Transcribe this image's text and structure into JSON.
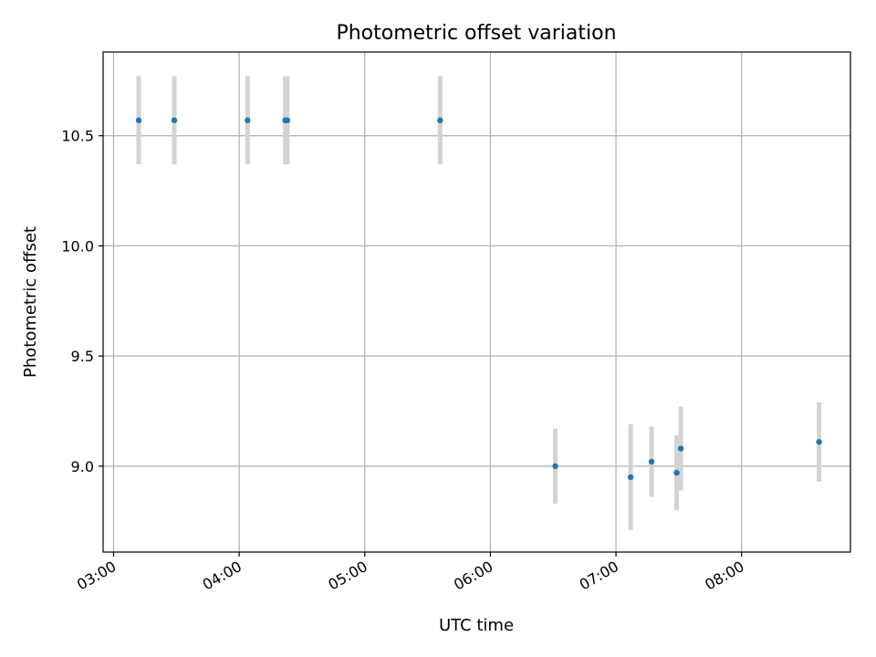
{
  "chart_data": {
    "type": "scatter",
    "title": "Photometric offset variation",
    "xlabel": "UTC time",
    "ylabel": "Photometric offset",
    "x_tick_labels": [
      "03:00",
      "04:00",
      "05:00",
      "06:00",
      "07:00",
      "08:00"
    ],
    "y_tick_labels": [
      "9.0",
      "9.5",
      "10.0",
      "10.5"
    ],
    "xlim": [
      "02:55",
      "08:52"
    ],
    "ylim": [
      8.61,
      10.88
    ],
    "grid": true,
    "legend": "none",
    "colors": {
      "points": "#1f77b4",
      "errorbars": "#d3d3d3",
      "grid": "#b0b0b0"
    },
    "points": [
      {
        "x": "03:12",
        "y": 10.57,
        "err": 0.2
      },
      {
        "x": "03:29",
        "y": 10.57,
        "err": 0.2
      },
      {
        "x": "04:04",
        "y": 10.57,
        "err": 0.2
      },
      {
        "x": "04:22",
        "y": 10.57,
        "err": 0.2
      },
      {
        "x": "04:23",
        "y": 10.57,
        "err": 0.2
      },
      {
        "x": "05:36",
        "y": 10.57,
        "err": 0.2
      },
      {
        "x": "06:31",
        "y": 9.0,
        "err": 0.17
      },
      {
        "x": "07:07",
        "y": 8.95,
        "err": 0.24
      },
      {
        "x": "07:17",
        "y": 9.02,
        "err": 0.16
      },
      {
        "x": "07:29",
        "y": 8.97,
        "err": 0.17
      },
      {
        "x": "07:31",
        "y": 9.08,
        "err": 0.19
      },
      {
        "x": "08:37",
        "y": 9.11,
        "err": 0.18
      }
    ]
  }
}
